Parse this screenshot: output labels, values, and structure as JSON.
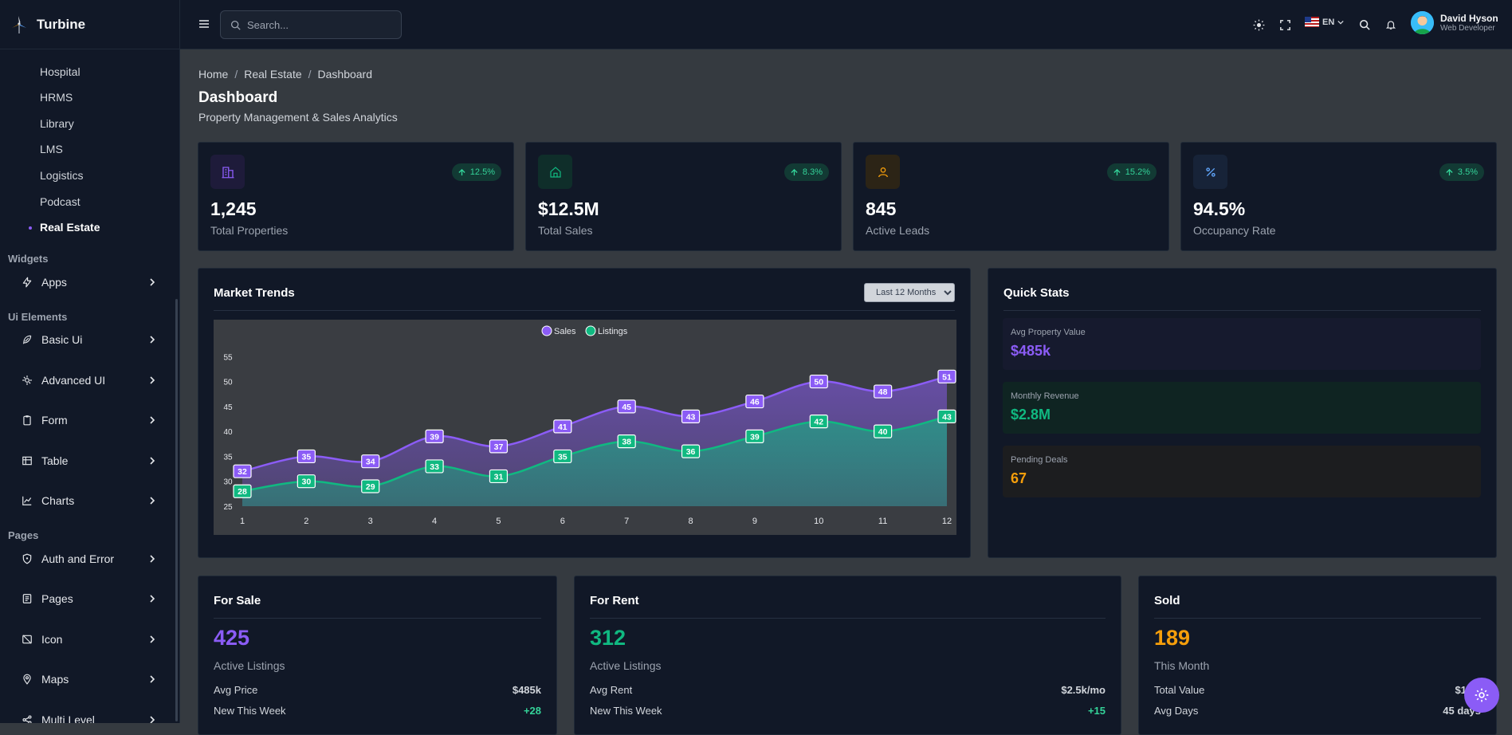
{
  "brand": {
    "name": "Turbine"
  },
  "sidebar": {
    "sub_items": [
      "Hospital",
      "HRMS",
      "Library",
      "LMS",
      "Logistics",
      "Podcast",
      "Real Estate"
    ],
    "sections": {
      "widgets": "Widgets",
      "ui_elements": "Ui Elements",
      "pages": "Pages"
    },
    "menus": {
      "apps": "Apps",
      "basic_ui": "Basic Ui",
      "advanced_ui": "Advanced UI",
      "form": "Form",
      "table": "Table",
      "charts": "Charts",
      "auth": "Auth and Error",
      "pages": "Pages",
      "icon": "Icon",
      "maps": "Maps",
      "multi": "Multi Level"
    }
  },
  "header": {
    "search_placeholder": "Search...",
    "language": "EN",
    "user_name": "David Hyson",
    "user_role": "Web Developer"
  },
  "breadcrumb": [
    "Home",
    "Real Estate",
    "Dashboard"
  ],
  "page": {
    "title": "Dashboard",
    "subtitle": "Property Management & Sales Analytics"
  },
  "kpis": [
    {
      "value": "1,245",
      "label": "Total Properties",
      "change": "12.5%",
      "icon": "building-icon"
    },
    {
      "value": "$12.5M",
      "label": "Total Sales",
      "change": "8.3%",
      "icon": "home-icon"
    },
    {
      "value": "845",
      "label": "Active Leads",
      "change": "15.2%",
      "icon": "user-icon"
    },
    {
      "value": "94.5%",
      "label": "Occupancy Rate",
      "change": "3.5%",
      "icon": "percent-icon"
    }
  ],
  "market": {
    "title": "Market Trends",
    "range": "Last 12 Months",
    "range_options": [
      "Last 12 Months"
    ]
  },
  "chart_data": {
    "type": "area",
    "x": [
      1,
      2,
      3,
      4,
      5,
      6,
      7,
      8,
      9,
      10,
      11,
      12
    ],
    "series": [
      {
        "name": "Sales",
        "values": [
          32,
          35,
          34,
          39,
          37,
          41,
          45,
          43,
          46,
          50,
          48,
          51
        ],
        "color": "#8b5cf6"
      },
      {
        "name": "Listings",
        "values": [
          28,
          30,
          29,
          33,
          31,
          35,
          38,
          36,
          39,
          42,
          40,
          43
        ],
        "color": "#10b981"
      }
    ],
    "yticks": [
      25,
      30,
      35,
      40,
      45,
      50,
      55
    ],
    "ylim": [
      25,
      56
    ],
    "legend": "top-center",
    "grid": false
  },
  "quick_stats": {
    "title": "Quick Stats",
    "items": [
      {
        "label": "Avg Property Value",
        "value": "$485k",
        "color": "#8b5cf6"
      },
      {
        "label": "Monthly Revenue",
        "value": "$2.8M",
        "color": "#10b981"
      },
      {
        "label": "Pending Deals",
        "value": "67",
        "color": "#f59e0b"
      }
    ]
  },
  "for_sale": {
    "title": "For Sale",
    "value": "425",
    "sub": "Active Listings",
    "rows": [
      {
        "label": "Avg Price",
        "value": "$485k"
      },
      {
        "label": "New This Week",
        "value": "+28"
      }
    ]
  },
  "for_rent": {
    "title": "For Rent",
    "value": "312",
    "sub": "Active Listings",
    "rows": [
      {
        "label": "Avg Rent",
        "value": "$2.5k/mo"
      },
      {
        "label": "New This Week",
        "value": "+15"
      }
    ]
  },
  "sold": {
    "title": "Sold",
    "value": "189",
    "sub": "This Month",
    "rows": [
      {
        "label": "Total Value",
        "value": "$12.5"
      },
      {
        "label": "Avg Days",
        "value": "45 days"
      }
    ]
  },
  "colors": {
    "accent": "#8b5cf6",
    "green": "#10b981",
    "orange": "#f59e0b"
  }
}
